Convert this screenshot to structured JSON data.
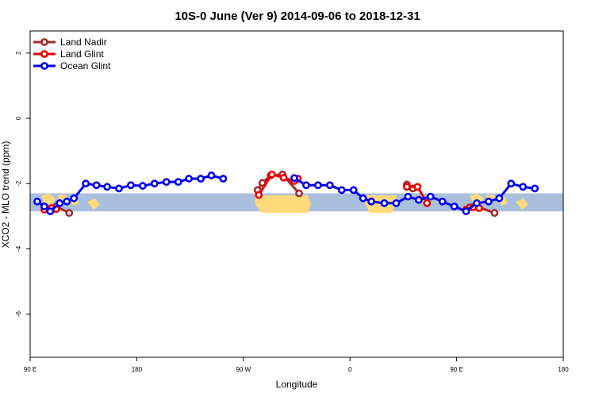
{
  "chart_data": {
    "type": "line",
    "title": "10S-0 June (Ver 9)   2014-09-06 to 2018-12-31",
    "xlabel": "Longitude",
    "ylabel": "XCO2 - MLO trend (ppm)",
    "x_ticks": [
      {
        "value": 90,
        "label": "90 E"
      },
      {
        "value": 180,
        "label": "180"
      },
      {
        "value": 270,
        "label": "90 W"
      },
      {
        "value": 360,
        "label": "0"
      },
      {
        "value": 450,
        "label": "90 E"
      },
      {
        "value": 540,
        "label": "180"
      }
    ],
    "y_ticks": [
      {
        "value": 2,
        "label": "2"
      },
      {
        "value": 0,
        "label": "0"
      },
      {
        "value": -2,
        "label": "-2"
      },
      {
        "value": -4,
        "label": "-4"
      },
      {
        "value": -6,
        "label": "-6"
      }
    ],
    "xlim": [
      90,
      540
    ],
    "ylim": [
      -7.3,
      2.7
    ],
    "legend_position": "top-left",
    "map_band": {
      "lat_range": "10S-0",
      "ymin": -2.85,
      "ymax": -2.3,
      "ocean_color": "#a9bfdd",
      "land_color": "#ffd97a"
    },
    "series": [
      {
        "name": "Land Nadir",
        "color": "#a52a2a",
        "points": [
          [
            107,
            -2.78
          ],
          [
            112,
            -2.7
          ],
          [
            123,
            -2.9
          ],
          [
            282,
            -2.2
          ],
          [
            286,
            -1.98
          ],
          [
            293,
            -1.75
          ],
          [
            303,
            -1.72
          ],
          [
            317,
            -2.3
          ],
          [
            408,
            -2.03
          ],
          [
            413,
            -2.15
          ],
          [
            461,
            -2.73
          ],
          [
            467,
            -2.7
          ],
          [
            482,
            -2.9
          ]
        ]
      },
      {
        "name": "Land Glint",
        "color": "#ee0000",
        "points": [
          [
            102,
            -2.8
          ],
          [
            108,
            -2.75
          ],
          [
            112,
            -2.78
          ],
          [
            283,
            -2.35
          ],
          [
            294,
            -1.72
          ],
          [
            304,
            -1.82
          ],
          [
            313,
            -1.92
          ],
          [
            316,
            -1.85
          ],
          [
            408,
            -2.1
          ],
          [
            417,
            -2.1
          ],
          [
            425,
            -2.6
          ],
          [
            458,
            -2.8
          ],
          [
            464,
            -2.72
          ],
          [
            469,
            -2.75
          ]
        ]
      },
      {
        "name": "Ocean Glint",
        "color": "#0000ee",
        "points": [
          [
            96,
            -2.55
          ],
          [
            102,
            -2.7
          ],
          [
            107,
            -2.85
          ],
          [
            115,
            -2.6
          ],
          [
            121,
            -2.55
          ],
          [
            127,
            -2.45
          ],
          [
            137,
            -2.0
          ],
          [
            146,
            -2.05
          ],
          [
            155,
            -2.1
          ],
          [
            165,
            -2.15
          ],
          [
            175,
            -2.05
          ],
          [
            185,
            -2.07
          ],
          [
            195,
            -2.0
          ],
          [
            205,
            -1.95
          ],
          [
            215,
            -1.95
          ],
          [
            224,
            -1.85
          ],
          [
            234,
            -1.85
          ],
          [
            243,
            -1.75
          ],
          [
            253,
            -1.85
          ],
          [
            313,
            -1.83
          ],
          [
            323,
            -2.05
          ],
          [
            333,
            -2.05
          ],
          [
            343,
            -2.05
          ],
          [
            353,
            -2.2
          ],
          [
            363,
            -2.2
          ],
          [
            371,
            -2.45
          ],
          [
            378,
            -2.55
          ],
          [
            389,
            -2.6
          ],
          [
            399,
            -2.6
          ],
          [
            409,
            -2.4
          ],
          [
            418,
            -2.5
          ],
          [
            428,
            -2.4
          ],
          [
            438,
            -2.55
          ],
          [
            448,
            -2.7
          ],
          [
            458,
            -2.85
          ],
          [
            467,
            -2.6
          ],
          [
            477,
            -2.55
          ],
          [
            486,
            -2.45
          ],
          [
            496,
            -2.0
          ],
          [
            506,
            -2.1
          ],
          [
            516,
            -2.15
          ]
        ]
      }
    ]
  }
}
